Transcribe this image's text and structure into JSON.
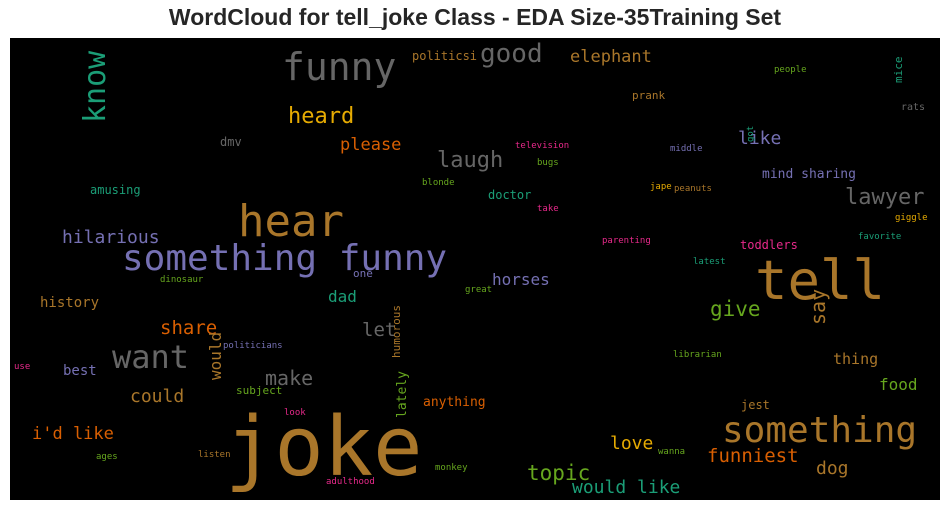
{
  "title": "WordCloud for tell_joke Class - EDA Size-35Training Set",
  "chart_data": {
    "type": "wordcloud",
    "title": "WordCloud for tell_joke Class - EDA Size-35Training Set",
    "background": "#000000",
    "words": [
      {
        "text": "joke",
        "color": "#a9762a"
      },
      {
        "text": "tell",
        "color": "#a9762a"
      },
      {
        "text": "hear",
        "color": "#a9762a"
      },
      {
        "text": "something funny",
        "color": "#7570b3"
      },
      {
        "text": "funny",
        "color": "#666666"
      },
      {
        "text": "something",
        "color": "#a9762a"
      },
      {
        "text": "want",
        "color": "#666666"
      },
      {
        "text": "know",
        "color": "#1b9e77"
      },
      {
        "text": "good",
        "color": "#666666"
      },
      {
        "text": "laugh",
        "color": "#666666"
      },
      {
        "text": "lawyer",
        "color": "#666666"
      },
      {
        "text": "heard",
        "color": "#e6ab02"
      },
      {
        "text": "elephant",
        "color": "#a9762a"
      },
      {
        "text": "hilarious",
        "color": "#7570b3"
      },
      {
        "text": "please",
        "color": "#d95f02"
      },
      {
        "text": "like",
        "color": "#7570b3"
      },
      {
        "text": "share",
        "color": "#d95f02"
      },
      {
        "text": "give",
        "color": "#66a61e"
      },
      {
        "text": "say",
        "color": "#a9762a"
      },
      {
        "text": "let",
        "color": "#666666"
      },
      {
        "text": "make",
        "color": "#666666"
      },
      {
        "text": "could",
        "color": "#a9762a"
      },
      {
        "text": "would",
        "color": "#a9762a"
      },
      {
        "text": "dad",
        "color": "#1b9e77"
      },
      {
        "text": "horses",
        "color": "#7570b3"
      },
      {
        "text": "i'd like",
        "color": "#d95f02"
      },
      {
        "text": "love",
        "color": "#e6ab02"
      },
      {
        "text": "topic",
        "color": "#66a61e"
      },
      {
        "text": "funniest",
        "color": "#d95f02"
      },
      {
        "text": "would like",
        "color": "#1b9e77"
      },
      {
        "text": "dog",
        "color": "#a9762a"
      },
      {
        "text": "food",
        "color": "#66a61e"
      },
      {
        "text": "thing",
        "color": "#a9762a"
      },
      {
        "text": "mind sharing",
        "color": "#7570b3"
      },
      {
        "text": "history",
        "color": "#a9762a"
      },
      {
        "text": "best",
        "color": "#7570b3"
      },
      {
        "text": "amusing",
        "color": "#1b9e77"
      },
      {
        "text": "doctor",
        "color": "#1b9e77"
      },
      {
        "text": "toddlers",
        "color": "#e7298a"
      },
      {
        "text": "anything",
        "color": "#d95f02"
      },
      {
        "text": "lately",
        "color": "#66a61e"
      },
      {
        "text": "humorous",
        "color": "#a9762a"
      },
      {
        "text": "subject",
        "color": "#66a61e"
      },
      {
        "text": "jest",
        "color": "#a9762a"
      },
      {
        "text": "prank",
        "color": "#a9762a"
      },
      {
        "text": "politicsi",
        "color": "#a9762a"
      },
      {
        "text": "dmv",
        "color": "#666666"
      },
      {
        "text": "mice",
        "color": "#1b9e77"
      },
      {
        "text": "rats",
        "color": "#666666"
      },
      {
        "text": "people",
        "color": "#66a61e"
      },
      {
        "text": "middle",
        "color": "#7570b3"
      },
      {
        "text": "got",
        "color": "#1b9e77"
      },
      {
        "text": "television",
        "color": "#e7298a"
      },
      {
        "text": "bugs",
        "color": "#66a61e"
      },
      {
        "text": "blonde",
        "color": "#66a61e"
      },
      {
        "text": "take",
        "color": "#e7298a"
      },
      {
        "text": "jape",
        "color": "#e6ab02"
      },
      {
        "text": "peanuts",
        "color": "#a9762a"
      },
      {
        "text": "giggle",
        "color": "#e6ab02"
      },
      {
        "text": "favorite",
        "color": "#1b9e77"
      },
      {
        "text": "parenting",
        "color": "#e7298a"
      },
      {
        "text": "latest",
        "color": "#1b9e77"
      },
      {
        "text": "dinosaur",
        "color": "#66a61e"
      },
      {
        "text": "one",
        "color": "#7570b3"
      },
      {
        "text": "great",
        "color": "#66a61e"
      },
      {
        "text": "politicians",
        "color": "#7570b3"
      },
      {
        "text": "librarian",
        "color": "#66a61e"
      },
      {
        "text": "use",
        "color": "#e7298a"
      },
      {
        "text": "look",
        "color": "#e7298a"
      },
      {
        "text": "ages",
        "color": "#66a61e"
      },
      {
        "text": "listen",
        "color": "#a9762a"
      },
      {
        "text": "adulthood",
        "color": "#e7298a"
      },
      {
        "text": "monkey",
        "color": "#66a61e"
      },
      {
        "text": "wanna",
        "color": "#66a61e"
      }
    ]
  }
}
